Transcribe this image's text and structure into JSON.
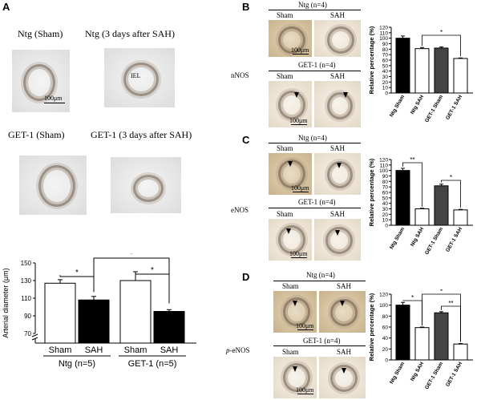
{
  "panels": {
    "A": {
      "letter": "A",
      "images": {
        "ntg_sham": "Ntg (Sham)",
        "ntg_sah": "Ntg (3 days after SAH)",
        "get1_sham": "GET-1 (Sham)",
        "get1_sah": "GET-1 (3 days after SAH)"
      },
      "image_labels": {
        "iel": "IEL",
        "scale": "100μm"
      }
    },
    "B": {
      "letter": "B",
      "marker": "nNOS",
      "ntg_header": "Ntg (n=4)",
      "get1_header": "GET-1 (n=4)",
      "sham": "Sham",
      "sah": "SAH",
      "scale": "100μm"
    },
    "C": {
      "letter": "C",
      "marker": "eNOS",
      "ntg_header": "Ntg (n=4)",
      "get1_header": "GET-1 (n=4)",
      "sham": "Sham",
      "sah": "SAH",
      "scale": "100μm"
    },
    "D": {
      "letter": "D",
      "marker": "p-eNOS",
      "marker_prefix": "p",
      "marker_rest": "-eNOS",
      "ntg_header": "Ntg (n=4)",
      "get1_header": "GET-1 (n=4)",
      "sham": "Sham",
      "sah": "SAH",
      "scale": "100μm"
    }
  },
  "chart_data": [
    {
      "id": "A",
      "type": "bar",
      "ylabel": "Arterial diameter (μm)",
      "ylim": [
        70,
        150
      ],
      "yticks": [
        70,
        90,
        110,
        130,
        150
      ],
      "axis_break": true,
      "bars": [
        {
          "group": "Ntg",
          "condition": "Sham",
          "value": 127,
          "error": 4,
          "fill": "#ffffff"
        },
        {
          "group": "Ntg",
          "condition": "SAH",
          "value": 108,
          "error": 4,
          "fill": "#000000"
        },
        {
          "group": "GET-1",
          "condition": "Sham",
          "value": 130,
          "error": 10,
          "fill": "#ffffff"
        },
        {
          "group": "GET-1",
          "condition": "SAH",
          "value": 95,
          "error": 2,
          "fill": "#000000"
        }
      ],
      "group_labels": [
        "Ntg (n=5)",
        "GET-1 (n=5)"
      ],
      "condition_labels": [
        "Sham",
        "SAH",
        "Sham",
        "SAH"
      ],
      "significance": [
        "*",
        "*",
        "*"
      ]
    },
    {
      "id": "B",
      "type": "bar",
      "ylabel": "Relative percentage (%)",
      "ylim": [
        0,
        120
      ],
      "yticks": [
        0,
        10,
        20,
        30,
        40,
        50,
        60,
        70,
        80,
        90,
        100,
        110,
        120
      ],
      "categories": [
        "Ntg Sham",
        "Ntg SAH",
        "GET-1 Sham",
        "GET-1 SAH"
      ],
      "values": [
        100,
        81,
        82,
        63
      ],
      "errors": [
        4,
        2,
        2,
        1
      ],
      "fills": [
        "#000000",
        "#ffffff",
        "#444444",
        "#ffffff"
      ],
      "significance": [
        "*"
      ]
    },
    {
      "id": "C",
      "type": "bar",
      "ylabel": "Relative percentage (%)",
      "ylim": [
        0,
        120
      ],
      "yticks": [
        0,
        10,
        20,
        30,
        40,
        50,
        60,
        70,
        80,
        90,
        100,
        110,
        120
      ],
      "categories": [
        "Ntg Sham",
        "Ntg SAH",
        "GET-1 Sham",
        "GET-1 SAH"
      ],
      "values": [
        100,
        30,
        72,
        28
      ],
      "errors": [
        4,
        1,
        3,
        1
      ],
      "fills": [
        "#000000",
        "#ffffff",
        "#444444",
        "#ffffff"
      ],
      "significance": [
        "**",
        "*"
      ]
    },
    {
      "id": "D",
      "type": "bar",
      "ylabel": "Relative percentage (%)",
      "ylim": [
        0,
        120
      ],
      "yticks": [
        0,
        20,
        40,
        60,
        80,
        100,
        120
      ],
      "categories": [
        "Ntg Sham",
        "Ntg SAH",
        "GET-1 Sham",
        "GET-1 SAH"
      ],
      "values": [
        100,
        59,
        86,
        29
      ],
      "errors": [
        5,
        1,
        2,
        1
      ],
      "fills": [
        "#000000",
        "#ffffff",
        "#444444",
        "#ffffff"
      ],
      "significance": [
        "*",
        "*",
        "**"
      ]
    }
  ]
}
